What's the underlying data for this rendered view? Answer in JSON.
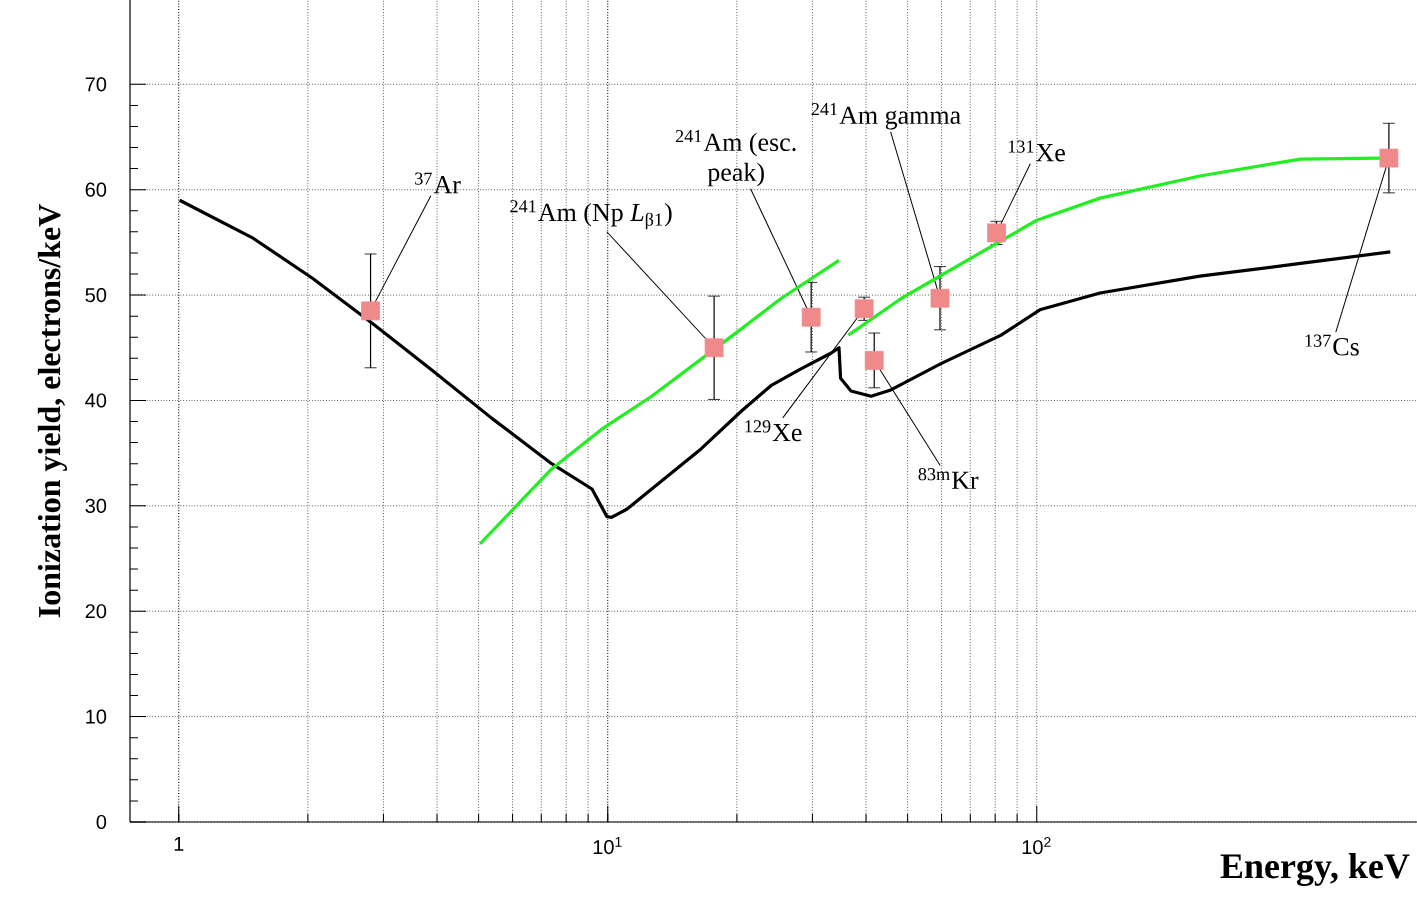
{
  "chart_data": {
    "type": "line",
    "xlabel": "Energy, keV",
    "ylabel": "Ionization yield, electrons/keV",
    "log": "x",
    "grid": true,
    "xlim": [
      0.77,
      770
    ],
    "ylim": [
      0,
      78
    ],
    "xticks": [
      {
        "value": 1,
        "label": "1"
      },
      {
        "value": 10,
        "label": "10$^{1}$"
      },
      {
        "value": 100,
        "label": "10$^{2}$"
      }
    ],
    "yticks": [
      0,
      10,
      20,
      30,
      40,
      50,
      60,
      70
    ],
    "series": [
      {
        "type": "scatter",
        "color": "#f08a8a",
        "marker": "square",
        "x": [
          2.8,
          17.7,
          29.8,
          39.6,
          41.8,
          59.5,
          80.6,
          662
        ],
        "values": [
          48.5,
          45.0,
          47.9,
          48.7,
          43.8,
          49.7,
          55.9,
          63.0
        ],
        "errors": [
          5.4,
          4.9,
          3.3,
          1.1,
          2.6,
          3,
          1.1,
          3.3
        ]
      },
      {
        "color": "#000000",
        "x": [
          1.005,
          1.49,
          2.05,
          2.83,
          3.89,
          5.37,
          7.4,
          9.19,
          9.95,
          10.2,
          11.1,
          12.66,
          16.5,
          20.5,
          24.0,
          28.2,
          33.2,
          34.6,
          34.9,
          36.9,
          41.1,
          45.7,
          59.8,
          82.6,
          101.7,
          140.5,
          240,
          412,
          667
        ],
        "values": [
          59.0,
          55.4,
          51.6,
          47.3,
          42.9,
          38.3,
          34.0,
          31.6,
          29.0,
          28.9,
          29.7,
          31.6,
          35.4,
          39.0,
          41.4,
          43.0,
          44.5,
          45.0,
          42.1,
          40.9,
          40.4,
          41.0,
          43.5,
          46.2,
          48.6,
          50.2,
          51.8,
          53.0,
          54.1
        ]
      },
      {
        "color": "#22ee22",
        "x": [
          5.04,
          7.4,
          9.7,
          12.66,
          19.6,
          25.4,
          34.6,
          35.5,
          36.4,
          48.4,
          100,
          140.5,
          240,
          412,
          631
        ],
        "values": [
          26.4,
          33.5,
          37.3,
          40.4,
          46.2,
          49.7,
          53.3,
          null,
          46.2,
          49.7,
          57.1,
          59.2,
          61.3,
          62.9,
          63.0
        ]
      }
    ],
    "annotations": [
      {
        "text": "$^{37}$Ar",
        "x": 2.8,
        "y": 48.5
      },
      {
        "text": "$^{241}$Am (Np *L*$_{β1}$)",
        "x": 17.7,
        "y": 45.0
      },
      {
        "text": "$^{241}$Am (esc. peak)",
        "x": 29.8,
        "y": 47.9
      },
      {
        "text": "$^{129}$Xe",
        "x": 39.6,
        "y": 48.7
      },
      {
        "text": "$^{83m}$Kr",
        "x": 41.8,
        "y": 43.8
      },
      {
        "text": "$^{241}$Am gamma",
        "x": 59.5,
        "y": 49.7
      },
      {
        "text": "$^{131}$Xe",
        "x": 80.6,
        "y": 55.9
      },
      {
        "text": "$^{137}$Cs",
        "x": 662,
        "y": 63.0
      }
    ]
  }
}
